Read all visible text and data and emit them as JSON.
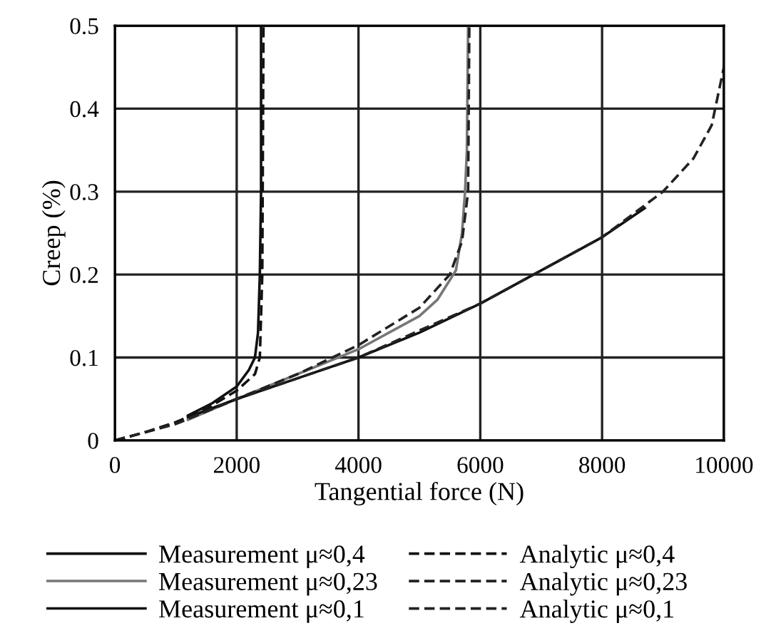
{
  "chart_data": {
    "type": "line",
    "xlabel": "Tangential force (N)",
    "ylabel": "Creep (%)",
    "xlim": [
      0,
      10000
    ],
    "ylim": [
      0,
      0.5
    ],
    "xticks": [
      0,
      2000,
      4000,
      6000,
      8000,
      10000
    ],
    "yticks": [
      0,
      0.1,
      0.2,
      0.3,
      0.4,
      0.5
    ],
    "grid": true,
    "legend": "bottom",
    "marker": "none",
    "series": [
      {
        "name": "Measurement μ≈0,4",
        "color": "#111111",
        "line_style": "solid",
        "x": [
          1200,
          1600,
          2000,
          2200,
          2300,
          2350,
          2380,
          2400,
          2400
        ],
        "values": [
          0.03,
          0.045,
          0.065,
          0.085,
          0.1,
          0.13,
          0.2,
          0.3,
          0.5
        ]
      },
      {
        "name": "Measurement μ≈0,23",
        "color": "#777777",
        "line_style": "solid",
        "x": [
          1200,
          2000,
          3000,
          4000,
          5000,
          5300,
          5600,
          5700,
          5750,
          5780,
          5800
        ],
        "values": [
          0.025,
          0.05,
          0.08,
          0.11,
          0.15,
          0.17,
          0.205,
          0.25,
          0.3,
          0.35,
          0.5
        ]
      },
      {
        "name": "Measurement μ≈0,1",
        "color": "#111111",
        "line_style": "solid",
        "x": [
          1200,
          2000,
          3000,
          4000,
          5000,
          6000,
          7000,
          8000,
          8700
        ],
        "values": [
          0.028,
          0.05,
          0.075,
          0.1,
          0.13,
          0.165,
          0.205,
          0.245,
          0.28
        ]
      },
      {
        "name": "Analytic μ≈0,4",
        "color": "#111111",
        "line_style": "dashed",
        "x": [
          0,
          500,
          1000,
          1500,
          2000,
          2300,
          2380,
          2420,
          2440
        ],
        "values": [
          0,
          0.01,
          0.022,
          0.038,
          0.06,
          0.08,
          0.1,
          0.2,
          0.5
        ]
      },
      {
        "name": "Analytic μ≈0,23",
        "color": "#222222",
        "line_style": "dashed",
        "x": [
          0,
          1000,
          2000,
          3000,
          4000,
          5000,
          5500,
          5700,
          5800,
          5820
        ],
        "values": [
          0,
          0.02,
          0.05,
          0.08,
          0.115,
          0.16,
          0.2,
          0.24,
          0.3,
          0.5
        ]
      },
      {
        "name": "Analytic μ≈0,1",
        "color": "#222222",
        "line_style": "dashed",
        "x": [
          0,
          1000,
          2000,
          4000,
          6000,
          8000,
          9000,
          9500,
          9800,
          10000
        ],
        "values": [
          0,
          0.02,
          0.05,
          0.1,
          0.165,
          0.245,
          0.3,
          0.34,
          0.38,
          0.45
        ]
      }
    ]
  }
}
